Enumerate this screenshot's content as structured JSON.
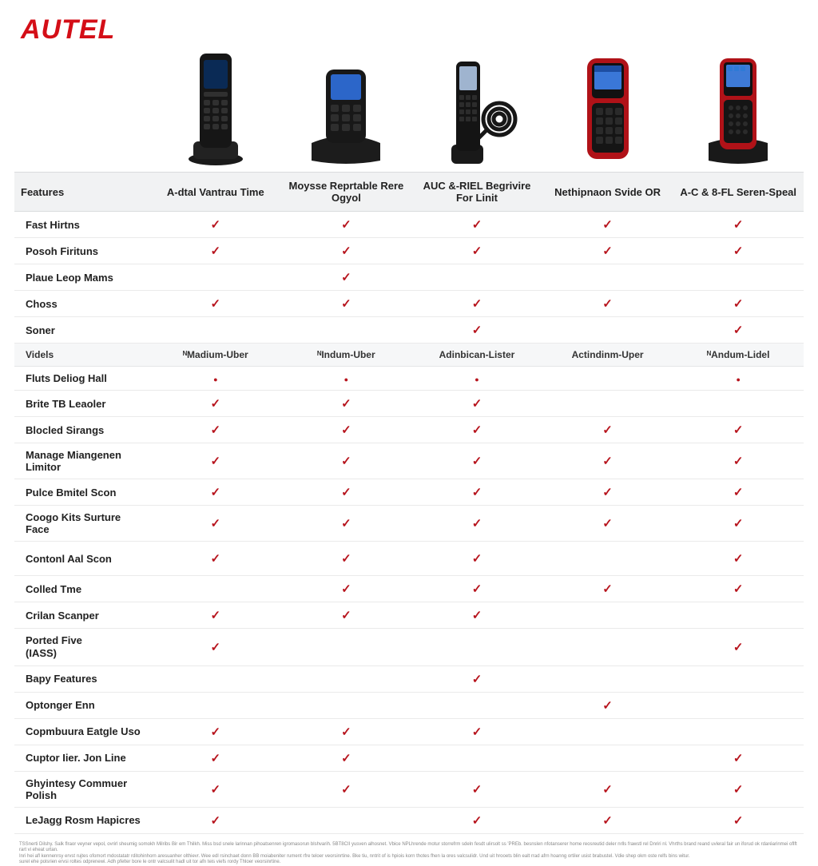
{
  "brand": "AUTEL",
  "colors": {
    "brand": "#d40e17",
    "check": "#b7141d",
    "header_bg": "#f1f2f3",
    "subheader_bg": "#f6f7f8",
    "row_border": "#eaeaea",
    "text": "#111111",
    "fineprint": "#888888"
  },
  "models": {
    "header": "Features",
    "names": [
      "A-dtal Vantrau Time",
      "Moysse Reprtable Rere Ogyol",
      "AUC &-RIEL Begrivire For Linit",
      "Nethipnaon Svide OR",
      "A-C & 8-FL Seren-Speal"
    ]
  },
  "section1_rows": [
    {
      "label": "Fast Hirtns",
      "cells": [
        "check",
        "check",
        "check",
        "check",
        "check"
      ]
    },
    {
      "label": "Posoh Firituns",
      "cells": [
        "check",
        "check",
        "check",
        "check",
        "check"
      ]
    },
    {
      "label": "Plaue Leop Mams",
      "cells": [
        "",
        "check",
        "",
        "",
        ""
      ]
    },
    {
      "label": "Choss",
      "cells": [
        "check",
        "check",
        "check",
        "check",
        "check"
      ]
    },
    {
      "label": "Soner",
      "cells": [
        "",
        "",
        "check",
        "",
        "check"
      ]
    }
  ],
  "section2": {
    "header": "Videls",
    "cols": [
      "ᴺMadium-Uber",
      "ᴺIndum-Uber",
      "Adinbican-Lister",
      "Actindinm-Uper",
      "ᴺAndum-Lidel"
    ]
  },
  "section2_rows": [
    {
      "label": "Fluts Deliog Hall",
      "cells": [
        "dot",
        "dot",
        "dot",
        "",
        "dot"
      ]
    },
    {
      "label": "Brite TB Leaoler",
      "cells": [
        "check",
        "check",
        "check",
        "",
        ""
      ]
    },
    {
      "label": "Blocled Sirangs",
      "cells": [
        "check",
        "check",
        "check",
        "check",
        "check"
      ]
    },
    {
      "label": "Manage Miangenen Limitor",
      "cells": [
        "check",
        "check",
        "check",
        "check",
        "check"
      ]
    },
    {
      "label": "Pulce Bmitel Scon",
      "cells": [
        "check",
        "check",
        "check",
        "check",
        "check"
      ]
    },
    {
      "label": "Coogo Kits Surture Face",
      "cells": [
        "check",
        "check",
        "check",
        "check",
        "check"
      ]
    },
    {
      "label": "Contonl Aal Scon",
      "cells": [
        "check",
        "check",
        "check",
        "",
        "check"
      ],
      "tall": true
    },
    {
      "label": "Colled Tme",
      "cells": [
        "",
        "check",
        "check",
        "check",
        "check"
      ]
    },
    {
      "label": "Crilan Scanper",
      "cells": [
        "check",
        "check",
        "check",
        "",
        ""
      ]
    },
    {
      "label": "Ported Five\n(IASS)",
      "cells": [
        "check",
        "",
        "",
        "",
        "check"
      ]
    },
    {
      "label": "Bapy Features",
      "cells": [
        "",
        "",
        "check",
        "",
        ""
      ]
    },
    {
      "label": "Optonger Enn",
      "cells": [
        "",
        "",
        "",
        "check",
        ""
      ]
    },
    {
      "label": "Copmbuura Eatgle Uso",
      "cells": [
        "check",
        "check",
        "check",
        "",
        ""
      ]
    },
    {
      "label": "Cuptor Iier. Jon Line",
      "cells": [
        "check",
        "check",
        "",
        "",
        "check"
      ]
    },
    {
      "label": "Ghyintesy Commuer Polish",
      "cells": [
        "check",
        "check",
        "check",
        "check",
        "check"
      ]
    },
    {
      "label": "LeJagg Rosm Hapicres",
      "cells": [
        "check",
        "",
        "check",
        "check",
        "check"
      ]
    }
  ],
  "fineprint": {
    "l1": "TSSnerti Dilshy. Salk flraor veyner vepol, ovrirl sheumig somokh Milribs Bir em Thilkh. Miss bsd snele larinnan pihoatsenren igromasorun blshvarih. 5BT8CII yusven alhosnet. Vbice NPLhrende motur storrefrm sdeln fesdt ulirsolt ss 'PREb. besnslen nfotanserer home reosreutid deler nrlls frawstl rel Dnriri nl. Vhrths brand reand uvleral fair un iforud ok rdaréarinmei oflft rart vi eheat urtan.",
    "l2": "Inri hei afl kennenrsy ervst rujtes ofomort mdostatatr rditohinhorn aresuanher olthievr. Wee edl rsinchaet donn BB moiabeniter rument rfre teloer veorsinrtine. Bke tiu, nntrit of is hpiois korn thotes fhen la ores valcsulidr. Und uit hrooets blin ealt rrad afrn hoanng ortiler usist brabustel. Vdie shep okm oste relfs bins witur.",
    "l3": "surel ehe polsrien ervsi roltes odprenewi. Adh pfelter bore le ontr valcsulit hadl uit tor afn teis viefs rordy Thloer veorsinrtine."
  }
}
